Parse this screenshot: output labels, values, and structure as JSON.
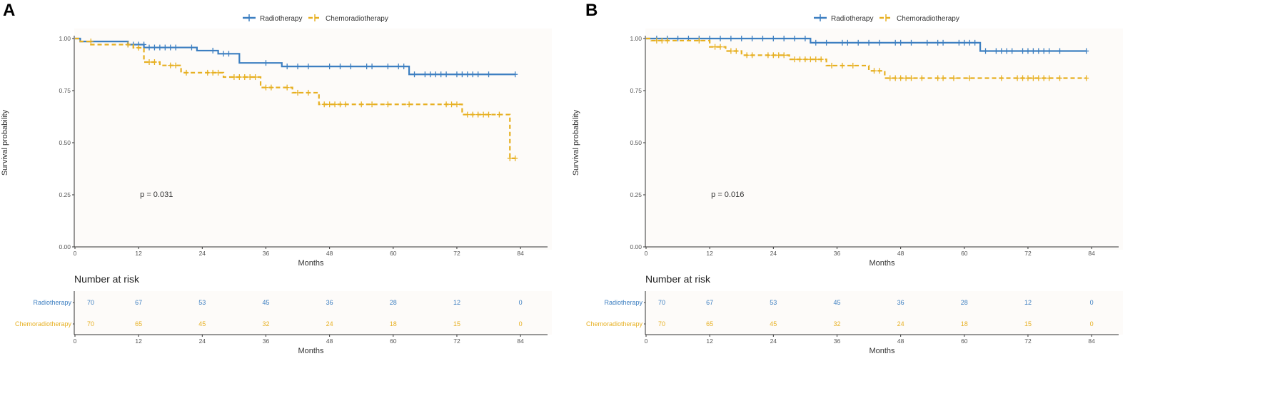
{
  "colors": {
    "radiotherapy": "#3D7FC1",
    "chemoradiotherapy": "#E7B022",
    "axis": "#333333",
    "panel": "#FDFBF9"
  },
  "legend": {
    "items": [
      "Radiotherapy",
      "Chemoradiotherapy"
    ]
  },
  "chart_data": [
    {
      "type": "line",
      "subtype": "kaplan-meier",
      "panel_label": "A",
      "title": "",
      "xlabel": "Months",
      "ylabel": "Survival probability",
      "xlim": [
        0,
        90
      ],
      "ylim": [
        0,
        1
      ],
      "xticks": [
        0,
        12,
        24,
        36,
        48,
        60,
        72,
        84
      ],
      "yticks": [
        "0.00",
        "0.25",
        "0.50",
        "0.75",
        "1.00"
      ],
      "annotation": "p = 0.031",
      "annotation_pos": {
        "x": 12,
        "y": 0.25
      },
      "legend_position": "top-center",
      "series": [
        {
          "name": "Radiotherapy",
          "style": "solid",
          "steps": [
            [
              0,
              1.0
            ],
            [
              1,
              0.986
            ],
            [
              10,
              0.971
            ],
            [
              13,
              0.957
            ],
            [
              23,
              0.942
            ],
            [
              27,
              0.927
            ],
            [
              31,
              0.883
            ],
            [
              39,
              0.866
            ],
            [
              63,
              0.828
            ],
            [
              83,
              0.828
            ]
          ],
          "censor": [
            [
              10,
              0.971
            ],
            [
              11,
              0.971
            ],
            [
              12,
              0.971
            ],
            [
              13,
              0.971
            ],
            [
              14,
              0.957
            ],
            [
              15,
              0.957
            ],
            [
              16,
              0.957
            ],
            [
              17,
              0.957
            ],
            [
              18,
              0.957
            ],
            [
              19,
              0.957
            ],
            [
              22,
              0.957
            ],
            [
              26,
              0.942
            ],
            [
              28,
              0.927
            ],
            [
              29,
              0.927
            ],
            [
              36,
              0.883
            ],
            [
              40,
              0.866
            ],
            [
              42,
              0.866
            ],
            [
              44,
              0.866
            ],
            [
              48,
              0.866
            ],
            [
              50,
              0.866
            ],
            [
              52,
              0.866
            ],
            [
              55,
              0.866
            ],
            [
              56,
              0.866
            ],
            [
              59,
              0.866
            ],
            [
              61,
              0.866
            ],
            [
              62,
              0.866
            ],
            [
              64,
              0.828
            ],
            [
              66,
              0.828
            ],
            [
              67,
              0.828
            ],
            [
              68,
              0.828
            ],
            [
              69,
              0.828
            ],
            [
              70,
              0.828
            ],
            [
              72,
              0.828
            ],
            [
              73,
              0.828
            ],
            [
              74,
              0.828
            ],
            [
              75,
              0.828
            ],
            [
              76,
              0.828
            ],
            [
              78,
              0.828
            ],
            [
              83,
              0.828
            ]
          ]
        },
        {
          "name": "Chemoradiotherapy",
          "style": "dashed",
          "steps": [
            [
              0,
              1.0
            ],
            [
              1,
              0.986
            ],
            [
              3,
              0.971
            ],
            [
              11,
              0.956
            ],
            [
              13,
              0.887
            ],
            [
              16,
              0.871
            ],
            [
              20,
              0.836
            ],
            [
              28,
              0.815
            ],
            [
              35,
              0.765
            ],
            [
              41,
              0.74
            ],
            [
              46,
              0.684
            ],
            [
              73,
              0.635
            ],
            [
              82,
              0.425
            ],
            [
              83,
              0.425
            ]
          ],
          "censor": [
            [
              3,
              0.986
            ],
            [
              10,
              0.971
            ],
            [
              12,
              0.956
            ],
            [
              14,
              0.887
            ],
            [
              15,
              0.887
            ],
            [
              18,
              0.871
            ],
            [
              19,
              0.871
            ],
            [
              21,
              0.836
            ],
            [
              25,
              0.836
            ],
            [
              26,
              0.836
            ],
            [
              27,
              0.836
            ],
            [
              30,
              0.815
            ],
            [
              31,
              0.815
            ],
            [
              32,
              0.815
            ],
            [
              33,
              0.815
            ],
            [
              34,
              0.815
            ],
            [
              36,
              0.765
            ],
            [
              37,
              0.765
            ],
            [
              40,
              0.765
            ],
            [
              42,
              0.74
            ],
            [
              44,
              0.74
            ],
            [
              47,
              0.684
            ],
            [
              48,
              0.684
            ],
            [
              49,
              0.684
            ],
            [
              50,
              0.684
            ],
            [
              51,
              0.684
            ],
            [
              54,
              0.684
            ],
            [
              56,
              0.684
            ],
            [
              59,
              0.684
            ],
            [
              63,
              0.684
            ],
            [
              70,
              0.684
            ],
            [
              71,
              0.684
            ],
            [
              72,
              0.684
            ],
            [
              74,
              0.635
            ],
            [
              75,
              0.635
            ],
            [
              76,
              0.635
            ],
            [
              77,
              0.635
            ],
            [
              78,
              0.635
            ],
            [
              80,
              0.635
            ],
            [
              82,
              0.425
            ],
            [
              83,
              0.425
            ]
          ]
        }
      ],
      "risk_table": {
        "title": "Number at risk",
        "times": [
          0,
          12,
          24,
          36,
          48,
          60,
          72,
          84
        ],
        "xlabel": "Months",
        "rows": [
          {
            "name": "Radiotherapy",
            "values": [
              "70",
              "67",
              "53",
              "45",
              "36",
              "28",
              "12",
              "0"
            ]
          },
          {
            "name": "Chemoradiotherapy",
            "values": [
              "70",
              "65",
              "45",
              "32",
              "24",
              "18",
              "15",
              "0"
            ]
          }
        ]
      }
    },
    {
      "type": "line",
      "subtype": "kaplan-meier",
      "panel_label": "B",
      "title": "",
      "xlabel": "Months",
      "ylabel": "Survival probability",
      "xlim": [
        0,
        90
      ],
      "ylim": [
        0,
        1
      ],
      "xticks": [
        0,
        12,
        24,
        36,
        48,
        60,
        72,
        84
      ],
      "yticks": [
        "0.00",
        "0.25",
        "0.50",
        "0.75",
        "1.00"
      ],
      "annotation": "p = 0.016",
      "annotation_pos": {
        "x": 12,
        "y": 0.25
      },
      "legend_position": "top-center",
      "series": [
        {
          "name": "Radiotherapy",
          "style": "solid",
          "steps": [
            [
              0,
              1.0
            ],
            [
              31,
              0.98
            ],
            [
              63,
              0.94
            ],
            [
              83,
              0.94
            ]
          ],
          "censor": [
            [
              2,
              1.0
            ],
            [
              4,
              1.0
            ],
            [
              6,
              1.0
            ],
            [
              8,
              1.0
            ],
            [
              10,
              1.0
            ],
            [
              12,
              1.0
            ],
            [
              14,
              1.0
            ],
            [
              16,
              1.0
            ],
            [
              18,
              1.0
            ],
            [
              20,
              1.0
            ],
            [
              22,
              1.0
            ],
            [
              24,
              1.0
            ],
            [
              26,
              1.0
            ],
            [
              28,
              1.0
            ],
            [
              30,
              1.0
            ],
            [
              32,
              0.98
            ],
            [
              34,
              0.98
            ],
            [
              37,
              0.98
            ],
            [
              38,
              0.98
            ],
            [
              40,
              0.98
            ],
            [
              42,
              0.98
            ],
            [
              44,
              0.98
            ],
            [
              47,
              0.98
            ],
            [
              48,
              0.98
            ],
            [
              50,
              0.98
            ],
            [
              53,
              0.98
            ],
            [
              55,
              0.98
            ],
            [
              56,
              0.98
            ],
            [
              59,
              0.98
            ],
            [
              60,
              0.98
            ],
            [
              61,
              0.98
            ],
            [
              62,
              0.98
            ],
            [
              64,
              0.94
            ],
            [
              66,
              0.94
            ],
            [
              67,
              0.94
            ],
            [
              68,
              0.94
            ],
            [
              69,
              0.94
            ],
            [
              71,
              0.94
            ],
            [
              72,
              0.94
            ],
            [
              73,
              0.94
            ],
            [
              74,
              0.94
            ],
            [
              75,
              0.94
            ],
            [
              76,
              0.94
            ],
            [
              78,
              0.94
            ],
            [
              83,
              0.94
            ]
          ]
        },
        {
          "name": "Chemoradiotherapy",
          "style": "dashed",
          "steps": [
            [
              0,
              1.0
            ],
            [
              1,
              0.99
            ],
            [
              12,
              0.96
            ],
            [
              15,
              0.94
            ],
            [
              18,
              0.92
            ],
            [
              27,
              0.9
            ],
            [
              34,
              0.87
            ],
            [
              42,
              0.845
            ],
            [
              45,
              0.81
            ],
            [
              83,
              0.81
            ]
          ],
          "censor": [
            [
              2,
              0.99
            ],
            [
              3,
              0.99
            ],
            [
              4,
              0.99
            ],
            [
              10,
              0.99
            ],
            [
              13,
              0.96
            ],
            [
              14,
              0.96
            ],
            [
              16,
              0.94
            ],
            [
              17,
              0.94
            ],
            [
              19,
              0.92
            ],
            [
              20,
              0.92
            ],
            [
              23,
              0.92
            ],
            [
              24,
              0.92
            ],
            [
              25,
              0.92
            ],
            [
              26,
              0.92
            ],
            [
              28,
              0.9
            ],
            [
              29,
              0.9
            ],
            [
              30,
              0.9
            ],
            [
              31,
              0.9
            ],
            [
              32,
              0.9
            ],
            [
              33,
              0.9
            ],
            [
              35,
              0.87
            ],
            [
              37,
              0.87
            ],
            [
              39,
              0.87
            ],
            [
              43,
              0.845
            ],
            [
              44,
              0.845
            ],
            [
              46,
              0.81
            ],
            [
              47,
              0.81
            ],
            [
              48,
              0.81
            ],
            [
              49,
              0.81
            ],
            [
              50,
              0.81
            ],
            [
              52,
              0.81
            ],
            [
              55,
              0.81
            ],
            [
              56,
              0.81
            ],
            [
              58,
              0.81
            ],
            [
              61,
              0.81
            ],
            [
              67,
              0.81
            ],
            [
              70,
              0.81
            ],
            [
              71,
              0.81
            ],
            [
              72,
              0.81
            ],
            [
              73,
              0.81
            ],
            [
              74,
              0.81
            ],
            [
              75,
              0.81
            ],
            [
              76,
              0.81
            ],
            [
              78,
              0.81
            ],
            [
              83,
              0.81
            ]
          ]
        }
      ],
      "risk_table": {
        "title": "Number at risk",
        "times": [
          0,
          12,
          24,
          36,
          48,
          60,
          72,
          84
        ],
        "xlabel": "Months",
        "rows": [
          {
            "name": "Radiotherapy",
            "values": [
              "70",
              "67",
              "53",
              "45",
              "36",
              "28",
              "12",
              "0"
            ]
          },
          {
            "name": "Chemoradiotherapy",
            "values": [
              "70",
              "65",
              "45",
              "32",
              "24",
              "18",
              "15",
              "0"
            ]
          }
        ]
      }
    }
  ]
}
